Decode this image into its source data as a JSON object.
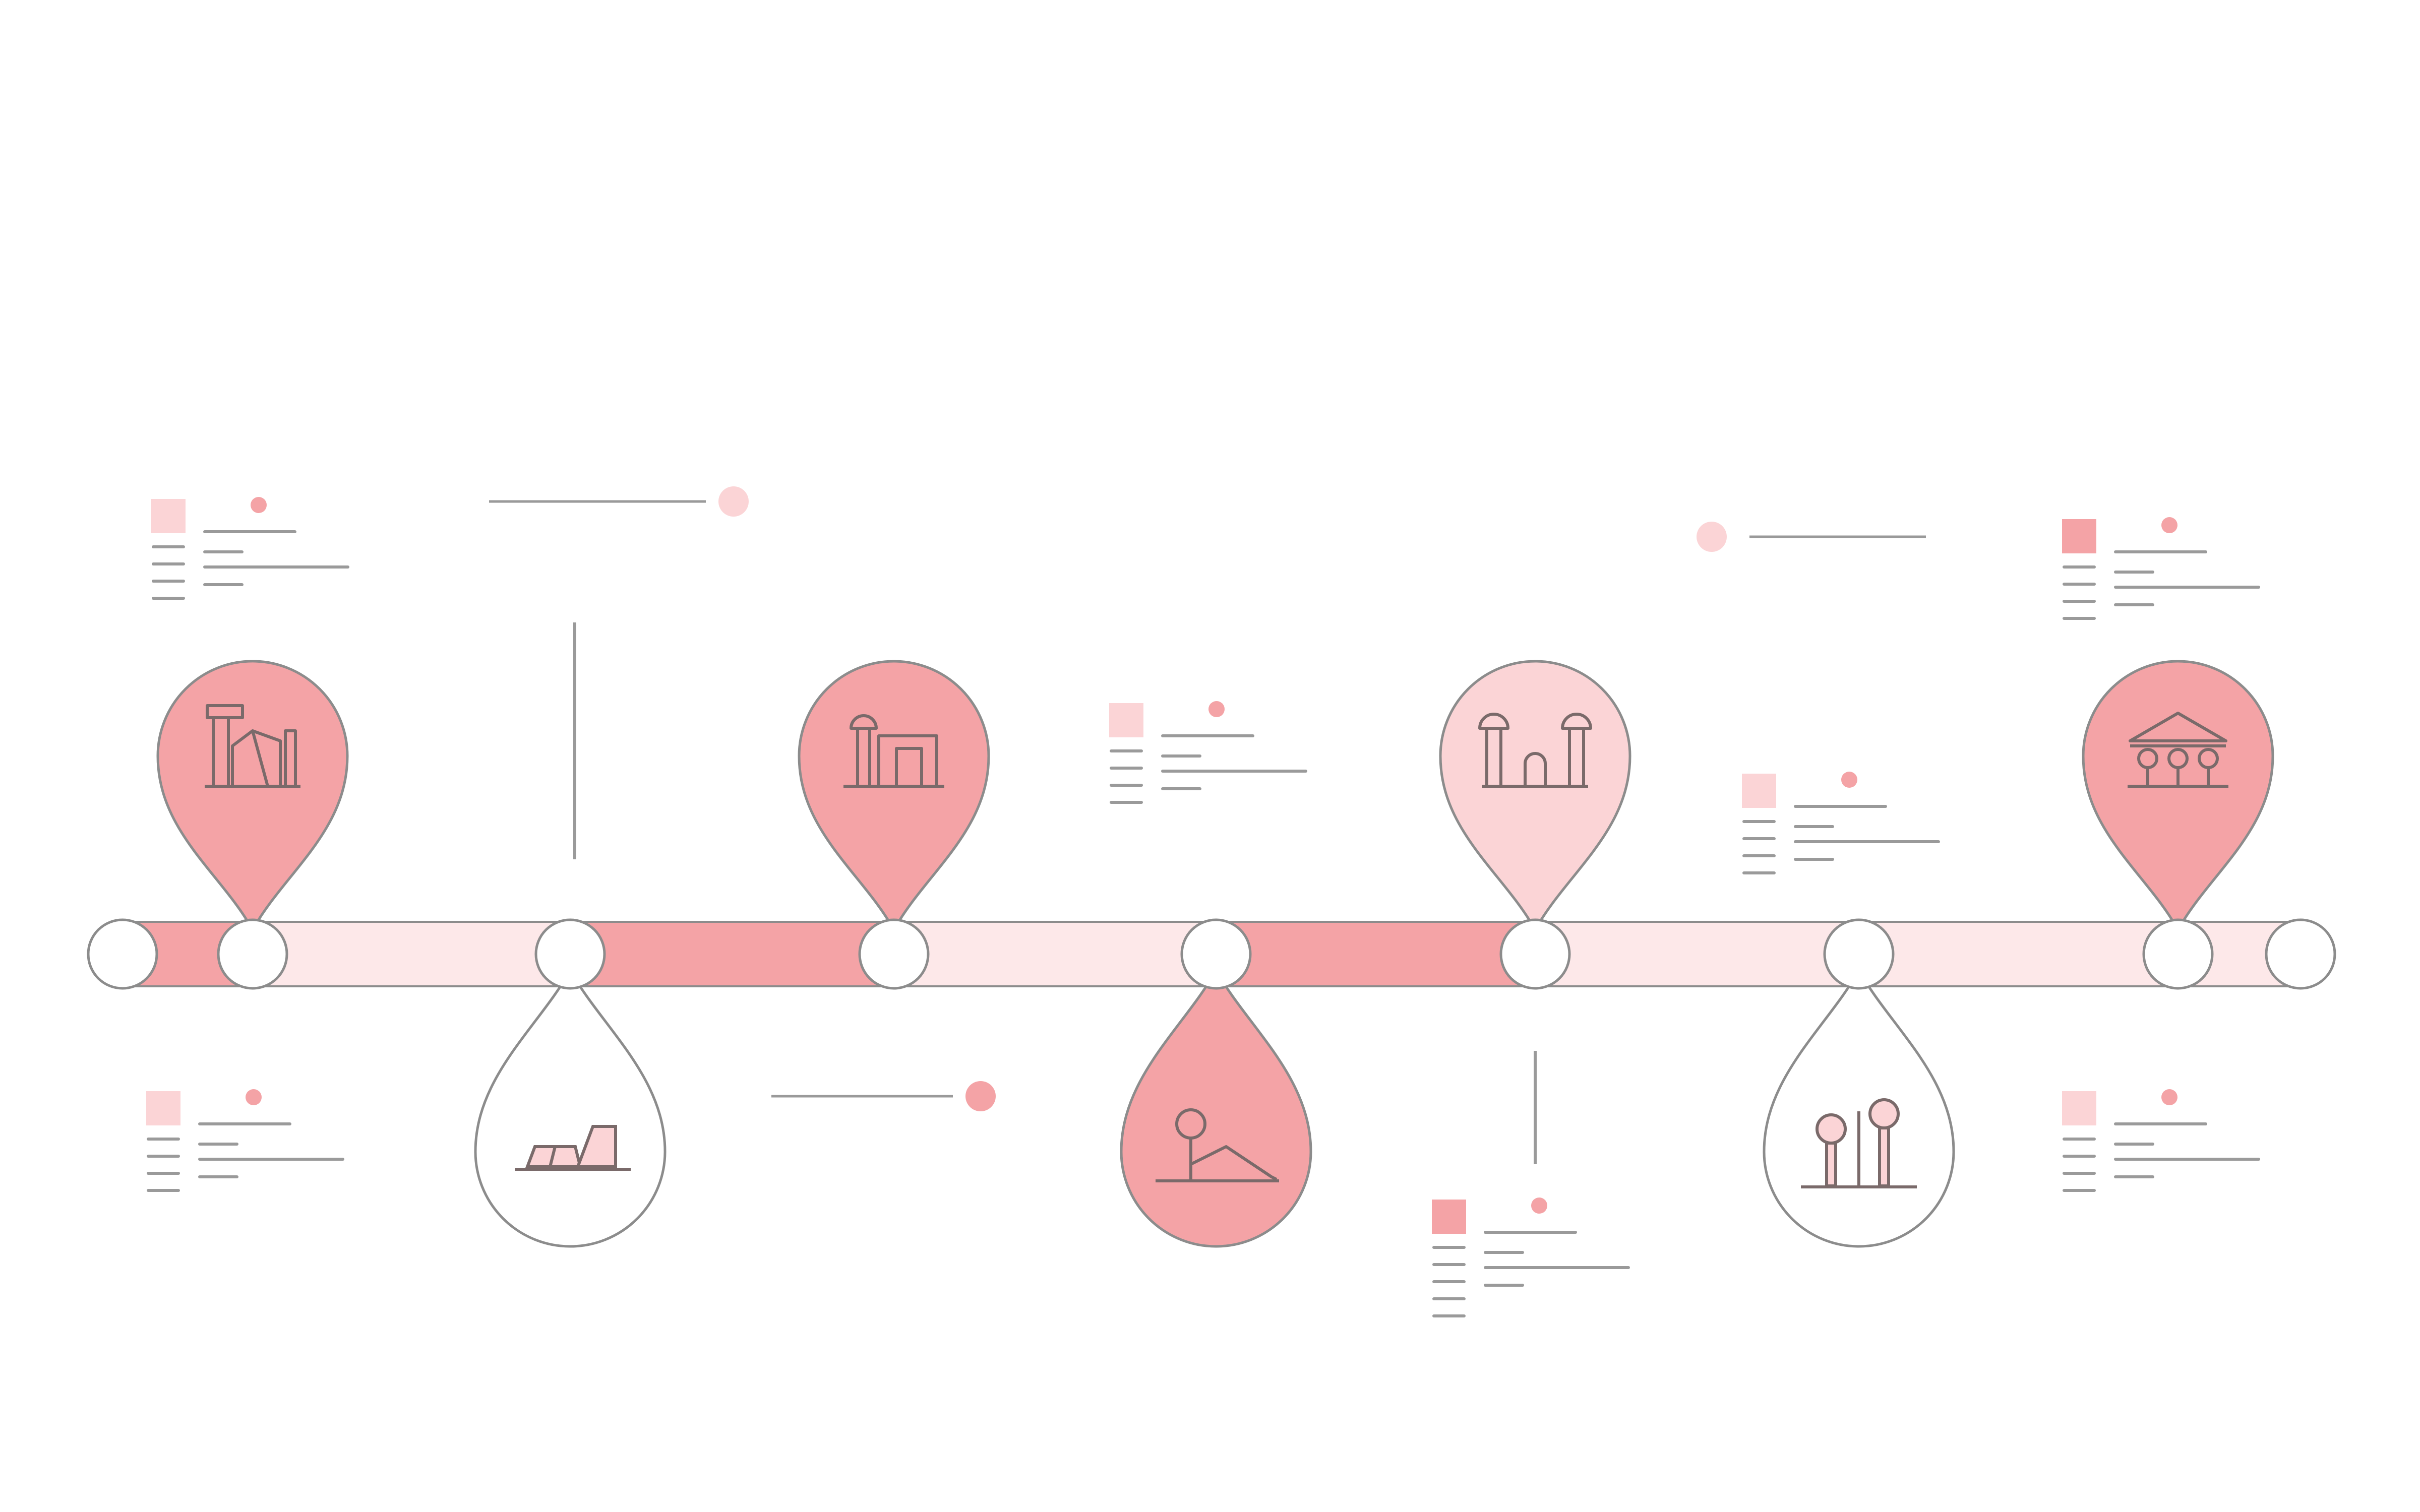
{
  "colors": {
    "background": "#ffffff",
    "accent": "#f4a3a6",
    "accent_light": "#fbd4d6",
    "accent_pale": "#fce6e7",
    "track_pale": "#fde8e9",
    "outline": "#8c8c8c",
    "line_gray": "#9a9a9a",
    "node_fill": "#ffffff"
  },
  "timeline": {
    "segments": [
      {
        "tone": "accent"
      },
      {
        "tone": "pale"
      },
      {
        "tone": "accent"
      },
      {
        "tone": "pale"
      },
      {
        "tone": "accent"
      },
      {
        "tone": "pale"
      },
      {
        "tone": "pale"
      },
      {
        "tone": "pale"
      }
    ],
    "nodes": 9
  },
  "milestones": [
    {
      "direction": "up",
      "fill": "accent",
      "icon": "factory-icon"
    },
    {
      "direction": "down",
      "fill": "white",
      "icon": "mining-cart-icon"
    },
    {
      "direction": "up",
      "fill": "accent",
      "icon": "industrial-plant-icon"
    },
    {
      "direction": "down",
      "fill": "accent",
      "icon": "construction-worker-icon"
    },
    {
      "direction": "up",
      "fill": "accent_light",
      "icon": "castle-towers-icon"
    },
    {
      "direction": "down",
      "fill": "white",
      "icon": "street-lamps-icon"
    },
    {
      "direction": "up",
      "fill": "accent",
      "icon": "pavilion-icon"
    }
  ],
  "text_blocks": [
    {
      "square_tone": "accent_light"
    },
    {
      "square_tone": "accent_light"
    },
    {
      "square_tone": "accent"
    },
    {
      "square_tone": "accent_light"
    },
    {
      "square_tone": "accent_light"
    },
    {
      "square_tone": "accent"
    },
    {
      "square_tone": "accent_light"
    }
  ],
  "connectors": [
    {
      "dot_tone": "accent_light"
    },
    {
      "dot_tone": "accent"
    },
    {
      "dot_tone": "accent_light"
    }
  ]
}
